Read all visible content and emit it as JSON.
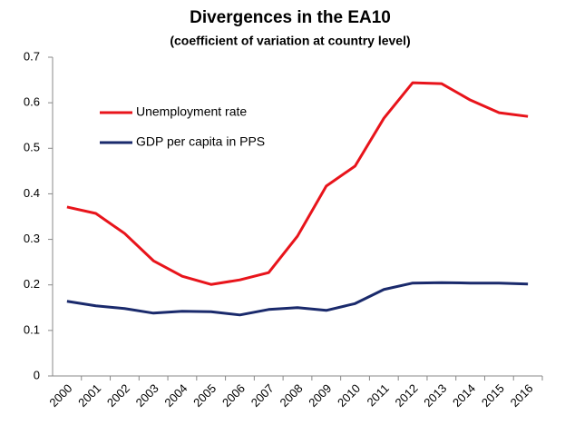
{
  "chart_data": {
    "type": "line",
    "title": "Divergences in the EA10",
    "subtitle": "(coefficient of variation at country level)",
    "categories": [
      "2000",
      "2001",
      "2002",
      "2003",
      "2004",
      "2005",
      "2006",
      "2007",
      "2008",
      "2009",
      "2010",
      "2011",
      "2012",
      "2013",
      "2014",
      "2015",
      "2016"
    ],
    "series": [
      {
        "name": "Unemployment rate",
        "color": "#e8141b",
        "values": [
          0.371,
          0.357,
          0.313,
          0.253,
          0.219,
          0.201,
          0.211,
          0.227,
          0.307,
          0.417,
          0.461,
          0.566,
          0.644,
          0.642,
          0.606,
          0.578,
          0.57
        ]
      },
      {
        "name": "GDP per capita in PPS",
        "color": "#1a2a6c",
        "values": [
          0.164,
          0.154,
          0.148,
          0.138,
          0.142,
          0.141,
          0.134,
          0.146,
          0.15,
          0.144,
          0.159,
          0.19,
          0.204,
          0.205,
          0.204,
          0.204,
          0.202
        ]
      }
    ],
    "ylim": [
      0,
      0.7
    ],
    "yticks": [
      0,
      0.1,
      0.2,
      0.3,
      0.4,
      0.5,
      0.6,
      0.7
    ],
    "grid": false,
    "legend": "upper left"
  }
}
